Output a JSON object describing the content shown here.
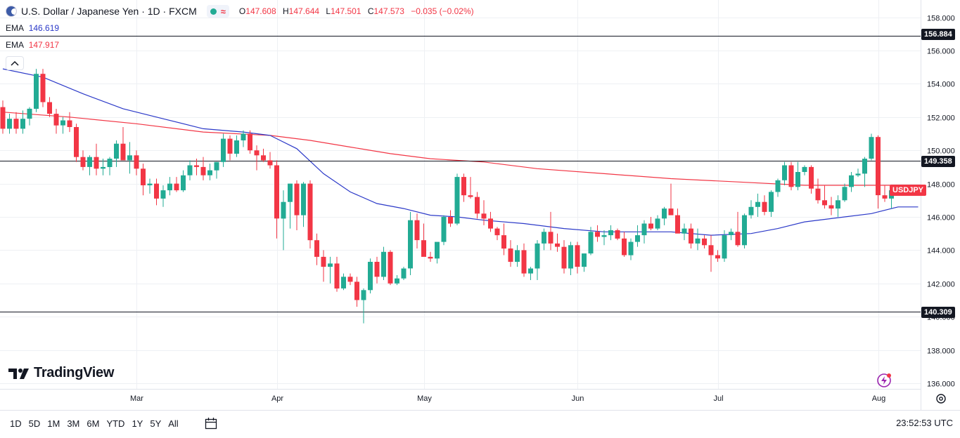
{
  "header": {
    "title": "U.S. Dollar / Japanese Yen · 1D · FXCM",
    "ohlc": [
      {
        "label": "O",
        "value": "147.608"
      },
      {
        "label": "H",
        "value": "147.644"
      },
      {
        "label": "L",
        "value": "147.501"
      },
      {
        "label": "C",
        "value": "147.573"
      }
    ],
    "change": "−0.035 (−0.02%)"
  },
  "indicators": [
    {
      "label": "EMA",
      "value": "146.619",
      "color": "#2b39c8"
    },
    {
      "label": "EMA",
      "value": "147.917",
      "color": "#f23645"
    }
  ],
  "logo_text": "TradingView",
  "ticker_label": "USDJPY",
  "level_labels": [
    "156.884",
    "149.358",
    "140.309"
  ],
  "time_ranges": [
    "1D",
    "5D",
    "1M",
    "3M",
    "6M",
    "YTD",
    "1Y",
    "5Y",
    "All"
  ],
  "clock": "23:52:53 UTC",
  "colors": {
    "up": "#22ab94",
    "down": "#f23645",
    "ema_fast": "#2b39c8",
    "ema_slow": "#f23645",
    "grid": "#eef0f4"
  },
  "chart_data": {
    "type": "candlestick",
    "title": "U.S. Dollar / Japanese Yen · 1D · FXCM",
    "ylim": [
      135.5,
      159.0
    ],
    "y_ticks": [
      136,
      138,
      140,
      142,
      144,
      146,
      148,
      150,
      152,
      154,
      156,
      158
    ],
    "y_tick_labels": [
      "136.000",
      "138.000",
      "140.000",
      "142.000",
      "144.000",
      "146.000",
      "148.000",
      "150.000",
      "152.000",
      "154.000",
      "156.000",
      "158.000"
    ],
    "x_ticks": [
      {
        "label": "Mar",
        "index": 20
      },
      {
        "label": "Apr",
        "index": 41
      },
      {
        "label": "May",
        "index": 63
      },
      {
        "label": "Jun",
        "index": 86
      },
      {
        "label": "Jul",
        "index": 107
      },
      {
        "label": "Aug",
        "index": 131
      }
    ],
    "horizontal_levels": [
      156.884,
      149.358,
      140.309
    ],
    "last_price": 147.573,
    "candles": [
      {
        "o": 152.6,
        "h": 153.0,
        "l": 151.0,
        "c": 151.3
      },
      {
        "o": 151.3,
        "h": 152.2,
        "l": 151.0,
        "c": 151.9
      },
      {
        "o": 151.9,
        "h": 152.3,
        "l": 151.0,
        "c": 151.3
      },
      {
        "o": 151.3,
        "h": 152.4,
        "l": 151.0,
        "c": 151.9
      },
      {
        "o": 151.9,
        "h": 152.6,
        "l": 151.5,
        "c": 152.5
      },
      {
        "o": 152.5,
        "h": 154.9,
        "l": 152.3,
        "c": 154.6
      },
      {
        "o": 154.6,
        "h": 154.9,
        "l": 152.6,
        "c": 152.9
      },
      {
        "o": 152.9,
        "h": 153.2,
        "l": 152.0,
        "c": 152.2
      },
      {
        "o": 152.2,
        "h": 152.5,
        "l": 151.0,
        "c": 151.5
      },
      {
        "o": 151.5,
        "h": 152.0,
        "l": 151.0,
        "c": 151.8
      },
      {
        "o": 151.8,
        "h": 152.3,
        "l": 151.1,
        "c": 151.4
      },
      {
        "o": 151.4,
        "h": 151.6,
        "l": 149.3,
        "c": 149.6
      },
      {
        "o": 149.6,
        "h": 150.0,
        "l": 148.8,
        "c": 149.0
      },
      {
        "o": 149.0,
        "h": 149.7,
        "l": 148.5,
        "c": 149.6
      },
      {
        "o": 149.6,
        "h": 150.4,
        "l": 148.5,
        "c": 148.9
      },
      {
        "o": 148.9,
        "h": 149.5,
        "l": 148.5,
        "c": 149.0
      },
      {
        "o": 149.0,
        "h": 149.6,
        "l": 148.5,
        "c": 149.5
      },
      {
        "o": 149.5,
        "h": 150.6,
        "l": 149.0,
        "c": 150.4
      },
      {
        "o": 150.4,
        "h": 151.4,
        "l": 149.6,
        "c": 149.4
      },
      {
        "o": 149.4,
        "h": 150.5,
        "l": 148.6,
        "c": 149.7
      },
      {
        "o": 149.7,
        "h": 150.0,
        "l": 148.5,
        "c": 148.9
      },
      {
        "o": 148.9,
        "h": 149.2,
        "l": 147.3,
        "c": 147.9
      },
      {
        "o": 147.9,
        "h": 148.3,
        "l": 147.4,
        "c": 148.0
      },
      {
        "o": 148.0,
        "h": 148.3,
        "l": 146.7,
        "c": 147.1
      },
      {
        "o": 147.1,
        "h": 147.9,
        "l": 146.6,
        "c": 147.6
      },
      {
        "o": 147.6,
        "h": 148.4,
        "l": 147.3,
        "c": 148.0
      },
      {
        "o": 148.0,
        "h": 148.4,
        "l": 147.5,
        "c": 147.6
      },
      {
        "o": 147.6,
        "h": 148.8,
        "l": 147.5,
        "c": 148.5
      },
      {
        "o": 148.5,
        "h": 149.4,
        "l": 148.2,
        "c": 149.1
      },
      {
        "o": 149.1,
        "h": 149.5,
        "l": 148.5,
        "c": 149.0
      },
      {
        "o": 149.0,
        "h": 149.6,
        "l": 148.2,
        "c": 148.5
      },
      {
        "o": 148.5,
        "h": 149.2,
        "l": 148.2,
        "c": 148.8
      },
      {
        "o": 148.8,
        "h": 149.3,
        "l": 148.3,
        "c": 149.3
      },
      {
        "o": 149.3,
        "h": 151.0,
        "l": 149.0,
        "c": 150.7
      },
      {
        "o": 150.7,
        "h": 150.9,
        "l": 149.4,
        "c": 149.8
      },
      {
        "o": 149.8,
        "h": 150.9,
        "l": 149.6,
        "c": 150.6
      },
      {
        "o": 150.6,
        "h": 151.2,
        "l": 150.2,
        "c": 151.0
      },
      {
        "o": 151.0,
        "h": 151.2,
        "l": 149.8,
        "c": 150.0
      },
      {
        "o": 150.0,
        "h": 150.3,
        "l": 148.8,
        "c": 149.7
      },
      {
        "o": 149.7,
        "h": 150.1,
        "l": 149.3,
        "c": 149.4
      },
      {
        "o": 149.4,
        "h": 149.9,
        "l": 148.9,
        "c": 149.1
      },
      {
        "o": 149.1,
        "h": 149.4,
        "l": 144.7,
        "c": 145.9
      },
      {
        "o": 145.9,
        "h": 147.6,
        "l": 144.0,
        "c": 146.9
      },
      {
        "o": 146.9,
        "h": 148.0,
        "l": 145.3,
        "c": 148.0
      },
      {
        "o": 148.0,
        "h": 148.2,
        "l": 145.2,
        "c": 146.1
      },
      {
        "o": 146.1,
        "h": 148.1,
        "l": 145.4,
        "c": 148.0
      },
      {
        "o": 148.0,
        "h": 148.2,
        "l": 144.1,
        "c": 144.6
      },
      {
        "o": 144.6,
        "h": 145.0,
        "l": 143.1,
        "c": 143.6
      },
      {
        "o": 143.6,
        "h": 144.0,
        "l": 142.1,
        "c": 143.0
      },
      {
        "o": 143.0,
        "h": 143.6,
        "l": 142.0,
        "c": 143.2
      },
      {
        "o": 143.2,
        "h": 143.6,
        "l": 141.5,
        "c": 141.7
      },
      {
        "o": 141.7,
        "h": 142.6,
        "l": 141.6,
        "c": 142.4
      },
      {
        "o": 142.4,
        "h": 142.6,
        "l": 141.9,
        "c": 142.1
      },
      {
        "o": 142.1,
        "h": 142.4,
        "l": 140.6,
        "c": 141.0
      },
      {
        "o": 141.0,
        "h": 141.7,
        "l": 139.6,
        "c": 141.6
      },
      {
        "o": 141.6,
        "h": 143.5,
        "l": 141.4,
        "c": 143.3
      },
      {
        "o": 143.3,
        "h": 143.6,
        "l": 142.0,
        "c": 142.4
      },
      {
        "o": 142.4,
        "h": 144.2,
        "l": 142.2,
        "c": 143.9
      },
      {
        "o": 143.9,
        "h": 144.0,
        "l": 141.9,
        "c": 142.0
      },
      {
        "o": 142.0,
        "h": 142.5,
        "l": 141.9,
        "c": 142.3
      },
      {
        "o": 142.3,
        "h": 143.0,
        "l": 142.2,
        "c": 142.9
      },
      {
        "o": 142.9,
        "h": 146.3,
        "l": 142.5,
        "c": 145.8
      },
      {
        "o": 145.8,
        "h": 146.2,
        "l": 144.1,
        "c": 144.6
      },
      {
        "o": 144.6,
        "h": 145.6,
        "l": 143.8,
        "c": 143.6
      },
      {
        "o": 143.6,
        "h": 143.9,
        "l": 143.3,
        "c": 143.5
      },
      {
        "o": 143.5,
        "h": 144.4,
        "l": 143.2,
        "c": 144.5
      },
      {
        "o": 144.5,
        "h": 146.1,
        "l": 144.3,
        "c": 146.0
      },
      {
        "o": 146.0,
        "h": 146.4,
        "l": 145.4,
        "c": 145.6
      },
      {
        "o": 145.6,
        "h": 148.6,
        "l": 145.5,
        "c": 148.4
      },
      {
        "o": 148.4,
        "h": 148.6,
        "l": 146.9,
        "c": 147.3
      },
      {
        "o": 147.3,
        "h": 148.4,
        "l": 147.1,
        "c": 147.2
      },
      {
        "o": 147.2,
        "h": 147.5,
        "l": 145.9,
        "c": 146.2
      },
      {
        "o": 146.2,
        "h": 147.0,
        "l": 145.5,
        "c": 145.9
      },
      {
        "o": 145.9,
        "h": 146.3,
        "l": 145.1,
        "c": 145.3
      },
      {
        "o": 145.3,
        "h": 145.4,
        "l": 144.6,
        "c": 144.9
      },
      {
        "o": 144.9,
        "h": 145.6,
        "l": 143.7,
        "c": 144.1
      },
      {
        "o": 144.1,
        "h": 144.6,
        "l": 143.0,
        "c": 143.3
      },
      {
        "o": 143.3,
        "h": 144.3,
        "l": 143.0,
        "c": 144.0
      },
      {
        "o": 144.0,
        "h": 144.4,
        "l": 142.4,
        "c": 142.6
      },
      {
        "o": 142.6,
        "h": 143.0,
        "l": 142.2,
        "c": 142.9
      },
      {
        "o": 142.9,
        "h": 144.6,
        "l": 142.2,
        "c": 144.4
      },
      {
        "o": 144.4,
        "h": 145.3,
        "l": 144.0,
        "c": 145.1
      },
      {
        "o": 145.1,
        "h": 146.3,
        "l": 144.0,
        "c": 144.4
      },
      {
        "o": 144.4,
        "h": 145.0,
        "l": 143.9,
        "c": 144.2
      },
      {
        "o": 144.2,
        "h": 144.6,
        "l": 142.6,
        "c": 142.9
      },
      {
        "o": 142.9,
        "h": 144.5,
        "l": 142.5,
        "c": 144.3
      },
      {
        "o": 144.3,
        "h": 144.5,
        "l": 142.6,
        "c": 143.0
      },
      {
        "o": 143.0,
        "h": 143.8,
        "l": 142.7,
        "c": 143.8
      },
      {
        "o": 143.8,
        "h": 145.4,
        "l": 143.7,
        "c": 145.1
      },
      {
        "o": 145.1,
        "h": 145.5,
        "l": 144.5,
        "c": 144.8
      },
      {
        "o": 144.8,
        "h": 145.2,
        "l": 144.3,
        "c": 144.9
      },
      {
        "o": 144.9,
        "h": 145.5,
        "l": 144.6,
        "c": 145.2
      },
      {
        "o": 145.2,
        "h": 145.3,
        "l": 144.6,
        "c": 144.7
      },
      {
        "o": 144.7,
        "h": 145.1,
        "l": 143.6,
        "c": 143.7
      },
      {
        "o": 143.7,
        "h": 144.7,
        "l": 143.4,
        "c": 144.5
      },
      {
        "o": 144.5,
        "h": 145.5,
        "l": 144.2,
        "c": 144.9
      },
      {
        "o": 144.9,
        "h": 145.8,
        "l": 144.4,
        "c": 145.6
      },
      {
        "o": 145.6,
        "h": 146.0,
        "l": 145.2,
        "c": 145.3
      },
      {
        "o": 145.3,
        "h": 146.1,
        "l": 145.2,
        "c": 145.9
      },
      {
        "o": 145.9,
        "h": 146.6,
        "l": 145.5,
        "c": 146.5
      },
      {
        "o": 146.5,
        "h": 148.0,
        "l": 146.3,
        "c": 146.1
      },
      {
        "o": 146.1,
        "h": 146.5,
        "l": 145.1,
        "c": 145.0
      },
      {
        "o": 145.0,
        "h": 145.6,
        "l": 144.6,
        "c": 145.3
      },
      {
        "o": 145.3,
        "h": 145.6,
        "l": 144.1,
        "c": 144.4
      },
      {
        "o": 144.4,
        "h": 145.3,
        "l": 144.0,
        "c": 144.7
      },
      {
        "o": 144.7,
        "h": 144.9,
        "l": 144.1,
        "c": 144.3
      },
      {
        "o": 144.3,
        "h": 144.9,
        "l": 142.7,
        "c": 143.7
      },
      {
        "o": 143.7,
        "h": 144.0,
        "l": 143.3,
        "c": 143.5
      },
      {
        "o": 143.5,
        "h": 145.2,
        "l": 143.3,
        "c": 144.9
      },
      {
        "o": 144.9,
        "h": 145.3,
        "l": 144.6,
        "c": 145.1
      },
      {
        "o": 145.1,
        "h": 146.3,
        "l": 144.2,
        "c": 144.3
      },
      {
        "o": 144.3,
        "h": 146.2,
        "l": 144.1,
        "c": 146.1
      },
      {
        "o": 146.1,
        "h": 147.0,
        "l": 145.9,
        "c": 146.6
      },
      {
        "o": 146.6,
        "h": 147.4,
        "l": 146.0,
        "c": 146.9
      },
      {
        "o": 146.9,
        "h": 147.3,
        "l": 146.1,
        "c": 146.3
      },
      {
        "o": 146.3,
        "h": 147.6,
        "l": 146.0,
        "c": 147.5
      },
      {
        "o": 147.5,
        "h": 148.3,
        "l": 147.2,
        "c": 148.2
      },
      {
        "o": 148.2,
        "h": 149.3,
        "l": 147.9,
        "c": 149.1
      },
      {
        "o": 149.1,
        "h": 149.3,
        "l": 147.6,
        "c": 147.8
      },
      {
        "o": 147.8,
        "h": 149.3,
        "l": 147.6,
        "c": 148.7
      },
      {
        "o": 148.7,
        "h": 149.1,
        "l": 148.5,
        "c": 149.0
      },
      {
        "o": 149.0,
        "h": 149.1,
        "l": 147.4,
        "c": 147.7
      },
      {
        "o": 147.7,
        "h": 148.3,
        "l": 146.8,
        "c": 147.0
      },
      {
        "o": 147.0,
        "h": 147.9,
        "l": 146.5,
        "c": 146.7
      },
      {
        "o": 146.7,
        "h": 147.2,
        "l": 146.1,
        "c": 146.5
      },
      {
        "o": 146.5,
        "h": 147.3,
        "l": 146.0,
        "c": 147.0
      },
      {
        "o": 147.0,
        "h": 148.0,
        "l": 146.9,
        "c": 147.8
      },
      {
        "o": 147.8,
        "h": 148.7,
        "l": 147.5,
        "c": 148.5
      },
      {
        "o": 148.5,
        "h": 148.9,
        "l": 148.4,
        "c": 148.6
      },
      {
        "o": 148.6,
        "h": 149.6,
        "l": 147.8,
        "c": 149.5
      },
      {
        "o": 149.5,
        "h": 151.0,
        "l": 149.4,
        "c": 150.8
      },
      {
        "o": 150.8,
        "h": 150.9,
        "l": 146.5,
        "c": 147.3
      },
      {
        "o": 147.3,
        "h": 147.9,
        "l": 146.9,
        "c": 147.1
      },
      {
        "o": 147.1,
        "h": 147.8,
        "l": 146.5,
        "c": 147.6
      },
      {
        "o": 147.608,
        "h": 147.644,
        "l": 147.501,
        "c": 147.573
      }
    ],
    "ema_fast": [
      {
        "i": 0,
        "v": 154.9
      },
      {
        "i": 6,
        "v": 154.4
      },
      {
        "i": 12,
        "v": 153.4
      },
      {
        "i": 18,
        "v": 152.5
      },
      {
        "i": 24,
        "v": 151.9
      },
      {
        "i": 30,
        "v": 151.3
      },
      {
        "i": 36,
        "v": 151.1
      },
      {
        "i": 40,
        "v": 150.9
      },
      {
        "i": 44,
        "v": 150.1
      },
      {
        "i": 48,
        "v": 148.6
      },
      {
        "i": 52,
        "v": 147.5
      },
      {
        "i": 56,
        "v": 146.8
      },
      {
        "i": 60,
        "v": 146.5
      },
      {
        "i": 64,
        "v": 146.1
      },
      {
        "i": 68,
        "v": 146.0
      },
      {
        "i": 72,
        "v": 145.8
      },
      {
        "i": 78,
        "v": 145.6
      },
      {
        "i": 84,
        "v": 145.3
      },
      {
        "i": 90,
        "v": 145.1
      },
      {
        "i": 96,
        "v": 145.1
      },
      {
        "i": 100,
        "v": 145.1
      },
      {
        "i": 106,
        "v": 144.9
      },
      {
        "i": 112,
        "v": 145.0
      },
      {
        "i": 116,
        "v": 145.3
      },
      {
        "i": 120,
        "v": 145.7
      },
      {
        "i": 126,
        "v": 146.0
      },
      {
        "i": 130,
        "v": 146.2
      },
      {
        "i": 134,
        "v": 146.6
      },
      {
        "i": 137,
        "v": 146.6
      }
    ],
    "ema_slow": [
      {
        "i": 0,
        "v": 152.3
      },
      {
        "i": 10,
        "v": 152.0
      },
      {
        "i": 20,
        "v": 151.6
      },
      {
        "i": 30,
        "v": 151.1
      },
      {
        "i": 40,
        "v": 150.9
      },
      {
        "i": 46,
        "v": 150.6
      },
      {
        "i": 52,
        "v": 150.2
      },
      {
        "i": 58,
        "v": 149.8
      },
      {
        "i": 64,
        "v": 149.5
      },
      {
        "i": 72,
        "v": 149.3
      },
      {
        "i": 80,
        "v": 148.9
      },
      {
        "i": 90,
        "v": 148.6
      },
      {
        "i": 100,
        "v": 148.3
      },
      {
        "i": 110,
        "v": 148.1
      },
      {
        "i": 120,
        "v": 147.9
      },
      {
        "i": 130,
        "v": 147.9
      },
      {
        "i": 137,
        "v": 147.9
      }
    ]
  }
}
